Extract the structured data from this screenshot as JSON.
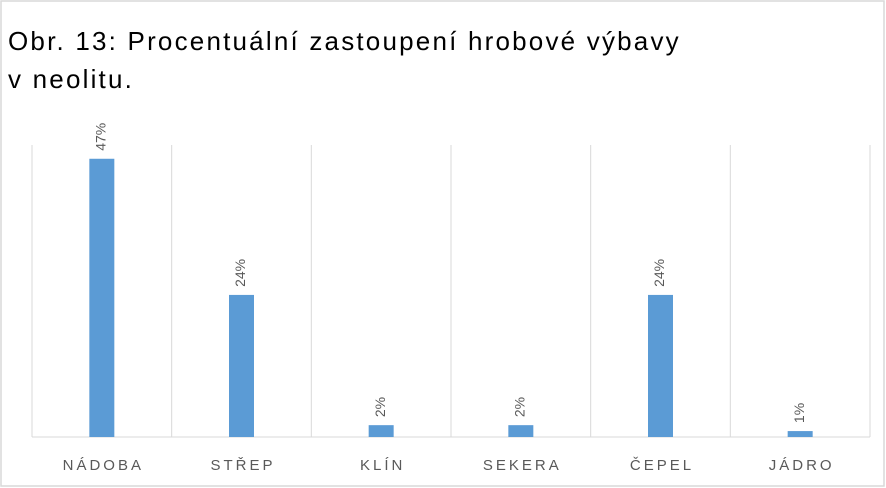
{
  "chart_data": {
    "type": "bar",
    "title": "Obr. 13: Procentuální zastoupení hrobové výbavy v neolitu.",
    "categories": [
      "NÁDOBA",
      "STŘEP",
      "KLÍN",
      "SEKERA",
      "ČEPEL",
      "JÁDRO"
    ],
    "values": [
      47,
      24,
      2,
      2,
      24,
      1
    ],
    "value_labels": [
      "47%",
      "24%",
      "2%",
      "2%",
      "24%",
      "1%"
    ],
    "color": "#5b9bd5",
    "ylim": [
      0,
      50
    ],
    "grid": true
  }
}
